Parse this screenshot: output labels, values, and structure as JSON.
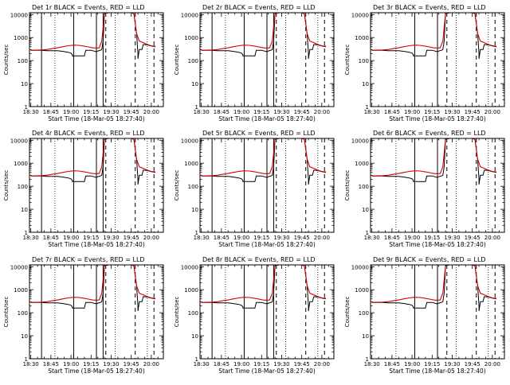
{
  "figure": {
    "xlabel": "Start Time (18-Mar-05 18:27:40)",
    "ylabel": "Counts/sec"
  },
  "axes": {
    "y_log": true,
    "ylim": [
      1,
      12000
    ],
    "y_ticks": [
      1,
      10,
      100,
      1000,
      10000
    ],
    "y_tick_labels": [
      "1",
      "10",
      "100",
      "1000",
      "10000"
    ],
    "x_ticks": [
      0,
      15,
      30,
      45,
      60,
      75,
      90
    ],
    "x_tick_labels": [
      "18:30",
      "18:45",
      "19:00",
      "19:15",
      "19:30",
      "19:45",
      "20:00"
    ],
    "xlim": [
      -1,
      99
    ]
  },
  "colors": {
    "events": "#000000",
    "lld": "#d40000",
    "axes": "#000000"
  },
  "chart_data": [
    {
      "type": "line",
      "title": "Det 1r  BLACK = Events, RED = LLD",
      "solid_markers": [
        8,
        32,
        49,
        54
      ],
      "dotted_markers": [
        18,
        63,
        87
      ],
      "dashed_markers": [
        56,
        78,
        92
      ],
      "series": [
        {
          "name": "Events",
          "color": "#000000"
        },
        {
          "name": "LLD",
          "color": "#d40000"
        }
      ]
    },
    {
      "type": "line",
      "title": "Det 2r  BLACK = Events, RED = LLD",
      "solid_markers": [
        8,
        32,
        49,
        54
      ],
      "dotted_markers": [
        18,
        63,
        87
      ],
      "dashed_markers": [
        56,
        78,
        92
      ],
      "series": [
        {
          "name": "Events",
          "color": "#000000"
        },
        {
          "name": "LLD",
          "color": "#d40000"
        }
      ]
    },
    {
      "type": "line",
      "title": "Det 3r  BLACK = Events, RED = LLD",
      "solid_markers": [
        32,
        49
      ],
      "dotted_markers": [
        18,
        63,
        87
      ],
      "dashed_markers": [
        56,
        78,
        92
      ],
      "series": [
        {
          "name": "Events",
          "color": "#000000"
        },
        {
          "name": "LLD",
          "color": "#d40000"
        }
      ]
    },
    {
      "type": "line",
      "title": "Det 4r  BLACK = Events, RED = LLD",
      "solid_markers": [
        8,
        32,
        49,
        54
      ],
      "dotted_markers": [
        18,
        63,
        87
      ],
      "dashed_markers": [
        56,
        78,
        92
      ],
      "series": [
        {
          "name": "Events",
          "color": "#000000"
        },
        {
          "name": "LLD",
          "color": "#d40000"
        }
      ]
    },
    {
      "type": "line",
      "title": "Det 5r  BLACK = Events, RED = LLD",
      "solid_markers": [
        8,
        32,
        49,
        54
      ],
      "dotted_markers": [
        18,
        63,
        87
      ],
      "dashed_markers": [
        56,
        78,
        92
      ],
      "series": [
        {
          "name": "Events",
          "color": "#000000"
        },
        {
          "name": "LLD",
          "color": "#d40000"
        }
      ]
    },
    {
      "type": "line",
      "title": "Det 6r  BLACK = Events, RED = LLD",
      "solid_markers": [
        32,
        49
      ],
      "dotted_markers": [
        18,
        63,
        87
      ],
      "dashed_markers": [
        56,
        78,
        92
      ],
      "series": [
        {
          "name": "Events",
          "color": "#000000"
        },
        {
          "name": "LLD",
          "color": "#d40000"
        }
      ]
    },
    {
      "type": "line",
      "title": "Det 7r  BLACK = Events, RED = LLD",
      "solid_markers": [
        8,
        32,
        49,
        54
      ],
      "dotted_markers": [
        18,
        63,
        87
      ],
      "dashed_markers": [
        56,
        78,
        92
      ],
      "series": [
        {
          "name": "Events",
          "color": "#000000"
        },
        {
          "name": "LLD",
          "color": "#d40000"
        }
      ]
    },
    {
      "type": "line",
      "title": "Det 8r  BLACK = Events, RED = LLD",
      "solid_markers": [
        8,
        32,
        49,
        54
      ],
      "dotted_markers": [
        18,
        63,
        87
      ],
      "dashed_markers": [
        56,
        78,
        92
      ],
      "series": [
        {
          "name": "Events",
          "color": "#000000"
        },
        {
          "name": "LLD",
          "color": "#d40000"
        }
      ]
    },
    {
      "type": "line",
      "title": "Det 9r  BLACK = Events, RED = LLD",
      "solid_markers": [
        32,
        49
      ],
      "dotted_markers": [
        18,
        63,
        87
      ],
      "dashed_markers": [
        56,
        78,
        92
      ],
      "series": [
        {
          "name": "Events",
          "color": "#000000"
        },
        {
          "name": "LLD",
          "color": "#d40000"
        }
      ]
    }
  ]
}
